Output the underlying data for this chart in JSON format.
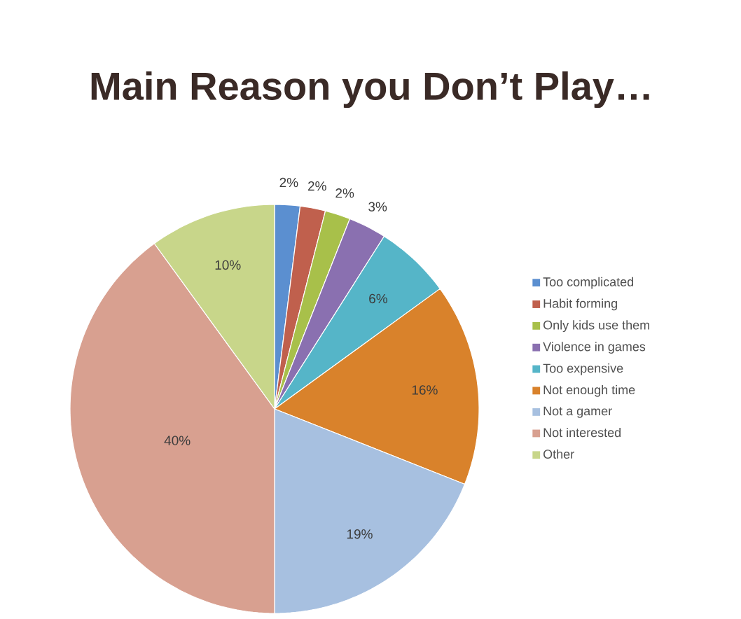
{
  "chart_data": {
    "type": "pie",
    "title": "Main Reason you Don’t Play…",
    "categories": [
      "Too complicated",
      "Habit forming",
      "Only kids use them",
      "Violence in games",
      "Too expensive",
      "Not enough time",
      "Not a gamer",
      "Not interested",
      "Other"
    ],
    "values": [
      2,
      2,
      2,
      3,
      6,
      16,
      19,
      40,
      10
    ],
    "colors": [
      "#5b8fd0",
      "#c0604d",
      "#a8c04a",
      "#8a70b0",
      "#55b5c8",
      "#d9822b",
      "#a7c0e0",
      "#d8a090",
      "#c8d68a"
    ],
    "value_labels": [
      "2%",
      "2%",
      "2%",
      "3%",
      "6%",
      "16%",
      "19%",
      "40%",
      "10%"
    ],
    "legend": "right"
  }
}
